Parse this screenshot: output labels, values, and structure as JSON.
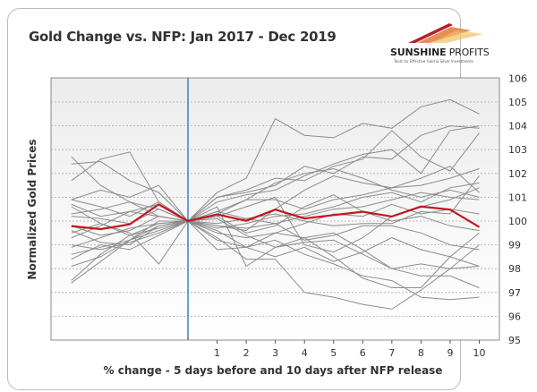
{
  "title": "Gold Change vs. NFP: Jan 2017 - Dec 2019",
  "logo": {
    "name_bold": "SUNSHINE",
    "name_light": "PROFITS",
    "tagline": "Tools for Effective Gold & Silver Investments"
  },
  "chart_data": {
    "type": "line",
    "title": "Gold Change vs. NFP: Jan 2017 - Dec 2019",
    "xlabel": "% change - 5 days before and 10 days after NFP release",
    "ylabel": "Normalized Gold Prices",
    "x": [
      -4,
      -3,
      -2,
      -1,
      0,
      1,
      2,
      3,
      4,
      5,
      6,
      7,
      8,
      9,
      10
    ],
    "x_tick_labels": [
      "1",
      "2",
      "3",
      "4",
      "5",
      "6",
      "7",
      "8",
      "9",
      "10"
    ],
    "y_tick_labels": [
      "95",
      "96",
      "97",
      "98",
      "99",
      "100",
      "101",
      "102",
      "103",
      "104",
      "105",
      "106"
    ],
    "ylim": [
      95,
      106
    ],
    "y_axis_side": "right",
    "grid": "horizontal dashed",
    "release_marker_x": 0,
    "colors": {
      "average": "#c0181f",
      "individual": "#8c8c8c",
      "release_line": "#3d7fc4"
    },
    "average": [
      99.79,
      99.66,
      99.86,
      100.7,
      100,
      100.28,
      100.01,
      100.48,
      100.11,
      100.25,
      100.39,
      100.19,
      100.61,
      100.48,
      99.75
    ],
    "series": [
      [
        102.7,
        101.5,
        100.8,
        100.5,
        100,
        101.2,
        101.8,
        104.3,
        103.6,
        103.5,
        104.1,
        103.9,
        104.8,
        105.1,
        104.5
      ],
      [
        101.7,
        102.6,
        102.9,
        100.8,
        100,
        100.8,
        101.1,
        101.3,
        101.9,
        102.4,
        102.8,
        103.0,
        102.0,
        103.8,
        104.0
      ],
      [
        102.4,
        102.5,
        101.7,
        101.2,
        100,
        101.0,
        101.2,
        101.5,
        102.3,
        102.0,
        102.7,
        102.6,
        103.6,
        104.0,
        103.9
      ],
      [
        100.9,
        101.3,
        101.0,
        101.5,
        100,
        101.0,
        101.3,
        101.8,
        101.7,
        102.3,
        102.6,
        103.8,
        102.7,
        102.1,
        103.7
      ],
      [
        97.4,
        98.3,
        99.2,
        99.6,
        100,
        99.3,
        98.4,
        98.4,
        97.0,
        96.8,
        96.5,
        96.3,
        97.1,
        98.0,
        99.0
      ],
      [
        97.5,
        98.6,
        99.4,
        99.9,
        100,
        98.8,
        98.9,
        99.2,
        98.6,
        98.2,
        97.7,
        97.5,
        96.8,
        96.7,
        96.8
      ],
      [
        98.4,
        99.0,
        98.8,
        99.4,
        100,
        100.6,
        98.1,
        98.9,
        99.3,
        99.5,
        98.8,
        98.0,
        98.2,
        98.0,
        98.1
      ],
      [
        100.6,
        99.9,
        99.5,
        98.2,
        100,
        99.8,
        99.6,
        100.5,
        101.3,
        101.9,
        101.6,
        101.4,
        101.8,
        102.3,
        101.2
      ],
      [
        99.0,
        98.8,
        99.1,
        99.5,
        100,
        100.2,
        100.6,
        101.0,
        99.0,
        98.7,
        99.3,
        100.2,
        100.6,
        100.9,
        101.4
      ],
      [
        100.3,
        100.5,
        100.8,
        100.2,
        100,
        100.1,
        99.4,
        98.9,
        99.1,
        99.2,
        98.6,
        98.0,
        97.7,
        97.7,
        97.2
      ],
      [
        98.1,
        98.5,
        99.2,
        99.8,
        100,
        99.2,
        98.9,
        99.5,
        99.3,
        98.5,
        97.6,
        97.2,
        97.2,
        98.5,
        99.5
      ],
      [
        99.3,
        99.8,
        100.4,
        100.2,
        100,
        100.4,
        100.9,
        100.9,
        100.5,
        100.9,
        101.1,
        101.4,
        101.5,
        101.8,
        102.2
      ],
      [
        100.2,
        100.1,
        99.9,
        100.5,
        100,
        100.3,
        100.9,
        101.6,
        102.0,
        102.2,
        101.8,
        101.3,
        101.0,
        101.3,
        101.0
      ],
      [
        99.8,
        99.4,
        99.6,
        100.2,
        100,
        99.5,
        99.3,
        99.5,
        99.9,
        100.3,
        100.2,
        100.7,
        100.3,
        100.5,
        100.3
      ],
      [
        100.7,
        100.2,
        100.4,
        100.7,
        100,
        99.8,
        99.7,
        99.9,
        99.2,
        99.4,
        99.8,
        99.8,
        99.5,
        99.0,
        98.8
      ],
      [
        99.6,
        99.1,
        99.0,
        99.8,
        100,
        99.6,
        98.9,
        98.5,
        98.9,
        98.3,
        98.7,
        99.3,
        98.8,
        98.5,
        98.1
      ],
      [
        100.9,
        100.6,
        100.2,
        100.8,
        100,
        99.9,
        100.1,
        100.3,
        100.0,
        99.8,
        99.9,
        99.9,
        100.4,
        100.3,
        101.9
      ],
      [
        98.9,
        99.3,
        99.7,
        99.9,
        100,
        99.7,
        99.9,
        100.2,
        100.3,
        100.6,
        101.0,
        101.2,
        100.8,
        101.4,
        101.6
      ],
      [
        99.5,
        99.9,
        99.4,
        99.7,
        100,
        100.2,
        99.5,
        99.8,
        100.6,
        101.1,
        100.4,
        100.0,
        100.2,
        99.8,
        99.6
      ],
      [
        98.6,
        98.9,
        99.2,
        100.0,
        100,
        100.4,
        100.1,
        99.9,
        100.2,
        100.5,
        100.6,
        100.9,
        101.2,
        101.0,
        100.9
      ]
    ]
  }
}
